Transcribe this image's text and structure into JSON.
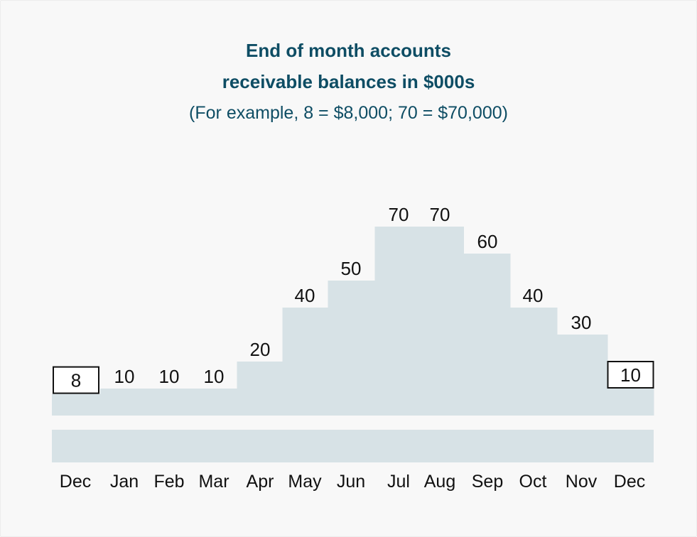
{
  "chart_data": {
    "type": "area",
    "title_line1": "End of month accounts",
    "title_line2": "receivable balances in $000s",
    "subtitle": "(For example, 8 = $8,000; 70 = $70,000)",
    "categories": [
      "Dec",
      "Jan",
      "Feb",
      "Mar",
      "Apr",
      "May",
      "Jun",
      "Jul",
      "Aug",
      "Sep",
      "Oct",
      "Nov",
      "Dec"
    ],
    "values": [
      8,
      10,
      10,
      10,
      20,
      40,
      50,
      70,
      70,
      60,
      40,
      30,
      10
    ],
    "boxed_indices": [
      0,
      12
    ],
    "ylim": [
      0,
      70
    ],
    "step": true,
    "colors": {
      "fill": "#d7e2e6",
      "title": "#0e4d64",
      "text": "#111111"
    }
  }
}
